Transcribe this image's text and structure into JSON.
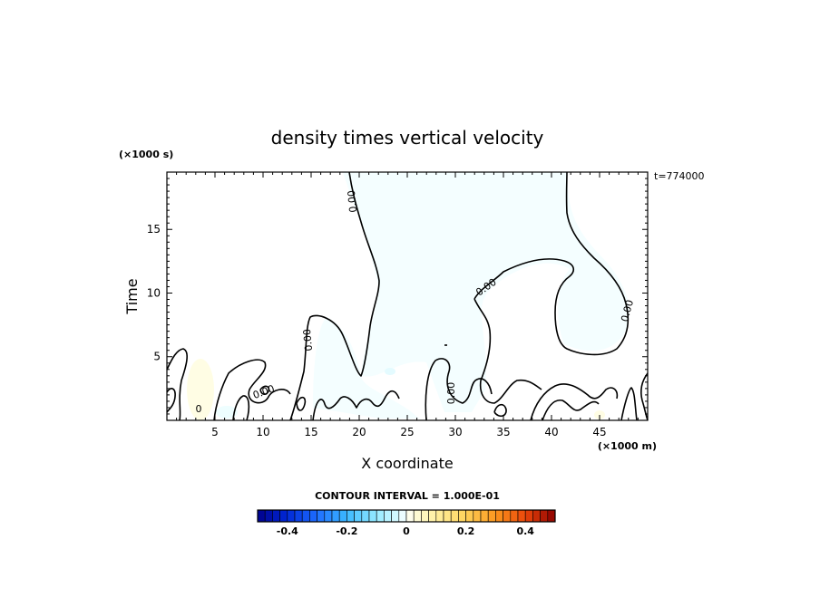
{
  "chart_data": {
    "type": "contour",
    "title": "density times vertical velocity",
    "xlabel": "X coordinate",
    "ylabel": "Time",
    "x_unit": "(×1000 m)",
    "y_unit": "(×1000 s)",
    "annotation": "t=774000",
    "xlim": [
      0,
      50
    ],
    "ylim": [
      0,
      19.5
    ],
    "xticks": [
      5,
      10,
      15,
      20,
      25,
      30,
      35,
      40,
      45
    ],
    "yticks": [
      5,
      10,
      15
    ],
    "xtick_labels": [
      "5",
      "10",
      "15",
      "20",
      "25",
      "30",
      "35",
      "40",
      "45"
    ],
    "ytick_labels": [
      "5",
      "10",
      "15"
    ],
    "contour_interval_text": "CONTOUR INTERVAL = 1.000E-01",
    "contour_labels": [
      "0.00",
      "0.00",
      "0.00",
      "0.00",
      "0.00",
      "0.00",
      "0"
    ],
    "colorbar": {
      "min": -0.5,
      "max": 0.5,
      "interval": 0.025,
      "tick_values": [
        -0.4,
        -0.2,
        0,
        0.2,
        0.4
      ],
      "tick_labels": [
        "-0.4",
        "-0.2",
        "0",
        "0.2",
        "0.4"
      ]
    }
  }
}
